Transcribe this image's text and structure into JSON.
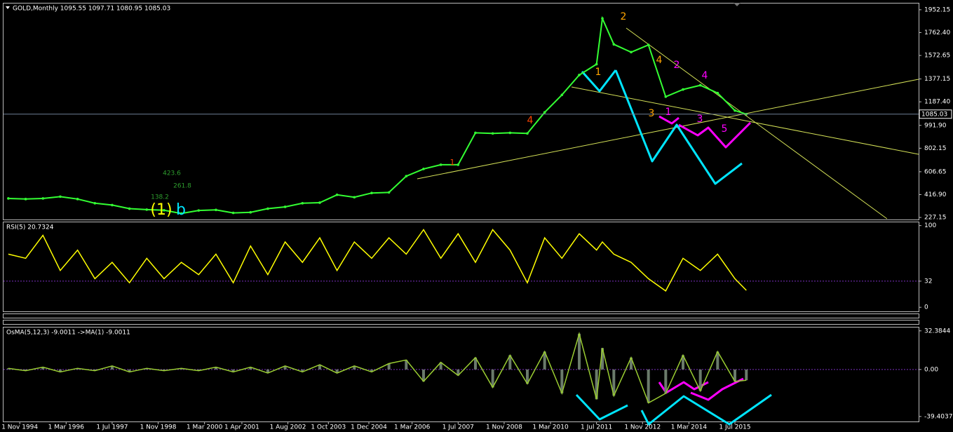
{
  "chart_data": [
    {
      "type": "line",
      "title": "GOLD,Monthly  1095.55 1097.71 1080.95 1085.03",
      "color": "#33ff33",
      "last_price": 1085.03,
      "x": [
        1994.5,
        1995,
        1995.5,
        1996,
        1996.5,
        1997,
        1997.5,
        1998,
        1998.5,
        1999,
        1999.5,
        2000,
        2000.5,
        2001,
        2001.5,
        2002,
        2002.5,
        2003,
        2003.5,
        2004,
        2004.5,
        2005,
        2005.5,
        2006,
        2006.5,
        2007,
        2007.5,
        2008,
        2008.5,
        2009,
        2009.5,
        2010,
        2010.5,
        2011,
        2011.5,
        2011.67,
        2012,
        2012.5,
        2013,
        2013.5,
        2014,
        2014.5,
        2015,
        2015.5,
        2015.83
      ],
      "values": [
        385,
        380,
        385,
        400,
        380,
        345,
        330,
        300,
        292,
        287,
        260,
        285,
        290,
        265,
        270,
        300,
        315,
        345,
        350,
        415,
        395,
        430,
        435,
        570,
        630,
        665,
        665,
        930,
        925,
        930,
        925,
        1100,
        1245,
        1410,
        1500,
        1880,
        1665,
        1600,
        1660,
        1230,
        1290,
        1325,
        1260,
        1115,
        1085
      ],
      "xlim": [
        1994.36,
        2020.81
      ],
      "xticks": [
        {
          "value": 1994.83,
          "label": "1 Nov 1994"
        },
        {
          "value": 1996.17,
          "label": "1 Mar 1996"
        },
        {
          "value": 1997.5,
          "label": "1 Jul 1997"
        },
        {
          "value": 1998.83,
          "label": "1 Nov 1998"
        },
        {
          "value": 2000.17,
          "label": "1 Mar 2000"
        },
        {
          "value": 2001.25,
          "label": "1 Apr 2001"
        },
        {
          "value": 2002.58,
          "label": "1 Aug 2002"
        },
        {
          "value": 2003.75,
          "label": "1 Oct 2003"
        },
        {
          "value": 2004.92,
          "label": "1 Dec 2004"
        },
        {
          "value": 2006.17,
          "label": "1 Mar 2006"
        },
        {
          "value": 2007.5,
          "label": "1 Jul 2007"
        },
        {
          "value": 2008.83,
          "label": "1 Nov 2008"
        },
        {
          "value": 2010.17,
          "label": "1 Mar 2010"
        },
        {
          "value": 2011.5,
          "label": "1 Jul 2011"
        },
        {
          "value": 2012.83,
          "label": "1 Nov 2012"
        },
        {
          "value": 2014.17,
          "label": "1 Mar 2014"
        },
        {
          "value": 2015.5,
          "label": "1 Jul 2015"
        }
      ],
      "ylim": [
        210,
        2004
      ],
      "yticks": [
        1952.15,
        {
          "value": 1762.4,
          "label": "1762.40"
        },
        1572.65,
        1377.15,
        {
          "value": 1187.4,
          "label": "1187.40"
        },
        {
          "value": 991.9,
          "label": "991.90"
        },
        802.15,
        606.65,
        {
          "value": 416.9,
          "label": "416.90"
        },
        227.15
      ],
      "annotations": [
        {
          "text": "2",
          "color": "#ffa500"
        },
        {
          "text": "1",
          "color": "#ffa500"
        },
        {
          "text": "3",
          "color": "#ffa500"
        },
        {
          "text": "4",
          "color": "#ffa500"
        },
        {
          "text": "4",
          "color": "#ff4500"
        },
        {
          "text": "1",
          "color": "#ff4500"
        },
        {
          "text": "2",
          "color": "#ff00ff"
        },
        {
          "text": "4",
          "color": "#ff00ff"
        },
        {
          "text": "1",
          "color": "#ff00ff"
        },
        {
          "text": "3",
          "color": "#ff00ff"
        },
        {
          "text": "5",
          "color": "#ff00ff"
        },
        {
          "text": "(1)",
          "color": "#ffff00"
        },
        {
          "text": "b",
          "color": "#00e5ff"
        },
        {
          "text": "423.6",
          "color": "#2e9e2e"
        },
        {
          "text": "261.8",
          "color": "#2e9e2e"
        },
        {
          "text": "138.2",
          "color": "#2e9e2e"
        }
      ]
    },
    {
      "type": "line",
      "title": "RSI(5) 20.7324",
      "color": "#ffff00",
      "x": [
        1994.5,
        1995,
        1995.5,
        1996,
        1996.5,
        1997,
        1997.5,
        1998,
        1998.5,
        1999,
        1999.5,
        2000,
        2000.5,
        2001,
        2001.5,
        2002,
        2002.5,
        2003,
        2003.5,
        2004,
        2004.5,
        2005,
        2005.5,
        2006,
        2006.5,
        2007,
        2007.5,
        2008,
        2008.5,
        2009,
        2009.5,
        2010,
        2010.5,
        2011,
        2011.5,
        2011.67,
        2012,
        2012.5,
        2013,
        2013.5,
        2014,
        2014.5,
        2015,
        2015.5,
        2015.83
      ],
      "values": [
        65,
        60,
        88,
        45,
        70,
        35,
        55,
        30,
        60,
        35,
        55,
        40,
        65,
        30,
        75,
        40,
        80,
        55,
        85,
        45,
        80,
        60,
        85,
        65,
        95,
        60,
        90,
        55,
        95,
        70,
        30,
        85,
        60,
        90,
        70,
        80,
        65,
        55,
        35,
        20,
        60,
        45,
        65,
        35,
        20.7324
      ],
      "xlim": [
        1994.36,
        2020.81
      ],
      "ylim": [
        -5,
        104
      ],
      "yticks": [
        100,
        32,
        0
      ],
      "level": 32
    },
    {
      "type": "histogram-line",
      "title": "OsMA(5,12,3) -9.0011  ->MA(1) -9.0011",
      "color": "#9acd32",
      "x": [
        1994.5,
        1995,
        1995.5,
        1996,
        1996.5,
        1997,
        1997.5,
        1998,
        1998.5,
        1999,
        1999.5,
        2000,
        2000.5,
        2001,
        2001.5,
        2002,
        2002.5,
        2003,
        2003.5,
        2004,
        2004.5,
        2005,
        2005.5,
        2006,
        2006.5,
        2007,
        2007.5,
        2008,
        2008.5,
        2009,
        2009.5,
        2010,
        2010.5,
        2011,
        2011.5,
        2011.67,
        2012,
        2012.5,
        2013,
        2013.5,
        2014,
        2014.5,
        2015,
        2015.5,
        2015.83
      ],
      "values": [
        1,
        -1,
        2,
        -2,
        1,
        -1,
        3,
        -2,
        1,
        -1,
        1,
        -1,
        2,
        -2,
        2,
        -3,
        3,
        -2,
        4,
        -3,
        3,
        -2,
        5,
        8,
        -10,
        6,
        -5,
        10,
        -15,
        12,
        -12,
        15,
        -20,
        30,
        -25,
        18,
        -22,
        10,
        -28,
        -20,
        12,
        -18,
        15,
        -10,
        -9.0011
      ],
      "xlim": [
        1994.36,
        2020.81
      ],
      "ylim": [
        -43.6,
        35.2
      ],
      "yticks": [
        32.3844,
        {
          "value": 0,
          "label": "0.00"
        },
        -39.4037
      ]
    }
  ]
}
